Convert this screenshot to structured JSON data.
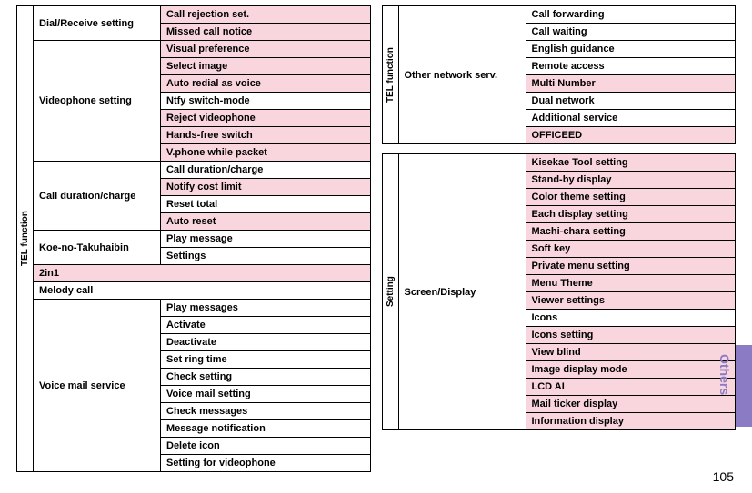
{
  "colors": {
    "pink": "#f9d5dd",
    "white": "#ffffff",
    "border": "#000000",
    "tab": "#8b7bc4"
  },
  "sideLabel": "Others",
  "pageNumber": "105",
  "left": {
    "sectionLabel": "TEL function",
    "groups": [
      {
        "title": "Dial/Receive setting",
        "items": [
          {
            "t": "Call rejection set.",
            "bg": "pink"
          },
          {
            "t": "Missed call notice",
            "bg": "pink"
          }
        ]
      },
      {
        "title": "Videophone setting",
        "items": [
          {
            "t": "Visual preference",
            "bg": "pink"
          },
          {
            "t": "Select image",
            "bg": "pink"
          },
          {
            "t": "Auto redial as voice",
            "bg": "pink"
          },
          {
            "t": "Ntfy switch-mode",
            "bg": "white"
          },
          {
            "t": "Reject videophone",
            "bg": "pink"
          },
          {
            "t": "Hands-free switch",
            "bg": "pink"
          },
          {
            "t": "V.phone while packet",
            "bg": "pink"
          }
        ]
      },
      {
        "title": "Call duration/charge",
        "items": [
          {
            "t": "Call duration/charge",
            "bg": "white"
          },
          {
            "t": "Notify cost limit",
            "bg": "pink"
          },
          {
            "t": "Reset total",
            "bg": "white"
          },
          {
            "t": "Auto reset",
            "bg": "pink"
          }
        ]
      },
      {
        "title": "Koe-no-Takuhaibin",
        "items": [
          {
            "t": "Play message",
            "bg": "white"
          },
          {
            "t": "Settings",
            "bg": "white"
          }
        ]
      },
      {
        "title": "2in1",
        "full": true,
        "titleBg": "pink"
      },
      {
        "title": "Melody call",
        "full": true,
        "titleBg": "white"
      },
      {
        "title": "Voice mail service",
        "items": [
          {
            "t": "Play messages",
            "bg": "white"
          },
          {
            "t": "Activate",
            "bg": "white"
          },
          {
            "t": "Deactivate",
            "bg": "white"
          },
          {
            "t": "Set ring time",
            "bg": "white"
          },
          {
            "t": "Check setting",
            "bg": "white"
          },
          {
            "t": "Voice mail setting",
            "bg": "white"
          },
          {
            "t": "Check messages",
            "bg": "white"
          },
          {
            "t": "Message notification",
            "bg": "white"
          },
          {
            "t": "Delete icon",
            "bg": "white"
          },
          {
            "t": "Setting for videophone",
            "bg": "white"
          }
        ]
      }
    ]
  },
  "rightTop": {
    "sectionLabel": "TEL function",
    "groups": [
      {
        "title": "Other network serv.",
        "items": [
          {
            "t": "Call forwarding",
            "bg": "white"
          },
          {
            "t": "Call waiting",
            "bg": "white"
          },
          {
            "t": "English guidance",
            "bg": "white"
          },
          {
            "t": "Remote access",
            "bg": "white"
          },
          {
            "t": "Multi Number",
            "bg": "pink"
          },
          {
            "t": "Dual network",
            "bg": "white"
          },
          {
            "t": "Additional service",
            "bg": "white"
          },
          {
            "t": "OFFICEED",
            "bg": "pink"
          }
        ]
      }
    ]
  },
  "rightBottom": {
    "sectionLabel": "Setting",
    "groups": [
      {
        "title": "Screen/Display",
        "items": [
          {
            "t": "Kisekae Tool setting",
            "bg": "pink"
          },
          {
            "t": "Stand-by display",
            "bg": "pink"
          },
          {
            "t": "Color theme setting",
            "bg": "pink"
          },
          {
            "t": "Each display setting",
            "bg": "pink"
          },
          {
            "t": "Machi-chara setting",
            "bg": "pink"
          },
          {
            "t": "Soft key",
            "bg": "pink"
          },
          {
            "t": "Private menu setting",
            "bg": "pink"
          },
          {
            "t": "Menu Theme",
            "bg": "pink"
          },
          {
            "t": "Viewer settings",
            "bg": "pink"
          },
          {
            "t": "Icons",
            "bg": "white"
          },
          {
            "t": "Icons setting",
            "bg": "pink"
          },
          {
            "t": "View blind",
            "bg": "pink"
          },
          {
            "t": "Image display mode",
            "bg": "pink"
          },
          {
            "t": "LCD AI",
            "bg": "pink"
          },
          {
            "t": "Mail ticker display",
            "bg": "pink"
          },
          {
            "t": "Information display",
            "bg": "pink"
          }
        ]
      }
    ]
  }
}
